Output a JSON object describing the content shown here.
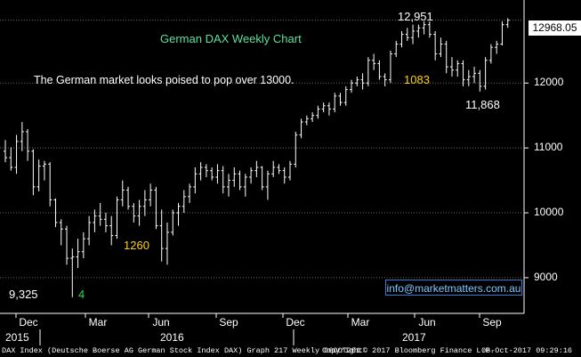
{
  "chart_data": {
    "type": "ohlc",
    "title": "German DAX Weekly Chart",
    "commentary": "The German market looks poised to pop over 13000.",
    "last_price": "12968.05",
    "ylim": [
      8450,
      13280
    ],
    "y_ticks": [
      {
        "value": 9000,
        "label": "9000"
      },
      {
        "value": 10000,
        "label": "10000"
      },
      {
        "value": 11000,
        "label": "11000"
      },
      {
        "value": 12000,
        "label": "12000"
      }
    ],
    "x_months": [
      "Dec",
      "Mar",
      "Jun",
      "Sep",
      "Dec",
      "Mar",
      "Jun",
      "Sep"
    ],
    "x_years": [
      "2015",
      "2016",
      "2017"
    ],
    "annotations": {
      "peak": "12,951",
      "trough": "11,868",
      "low": "9,325",
      "points_1083": "1083",
      "points_1260": "1260",
      "count": "4"
    },
    "contact": "info@marketmatters.com.au",
    "weekly_bars": [
      {
        "o": 10950,
        "h": 11120,
        "l": 10780,
        "c": 10850
      },
      {
        "o": 10850,
        "h": 11010,
        "l": 10650,
        "c": 10700
      },
      {
        "o": 10700,
        "h": 11200,
        "l": 10600,
        "c": 11100
      },
      {
        "o": 11100,
        "h": 11400,
        "l": 10950,
        "c": 11250
      },
      {
        "o": 11250,
        "h": 11290,
        "l": 10800,
        "c": 10950
      },
      {
        "o": 10950,
        "h": 10980,
        "l": 10270,
        "c": 10400
      },
      {
        "o": 10400,
        "h": 10820,
        "l": 10330,
        "c": 10720
      },
      {
        "o": 10720,
        "h": 10800,
        "l": 10500,
        "c": 10750
      },
      {
        "o": 10750,
        "h": 10780,
        "l": 10100,
        "c": 10200
      },
      {
        "o": 10200,
        "h": 10220,
        "l": 9780,
        "c": 9850
      },
      {
        "o": 9850,
        "h": 9900,
        "l": 9500,
        "c": 9750
      },
      {
        "o": 9750,
        "h": 9800,
        "l": 9200,
        "c": 9300
      },
      {
        "o": 9300,
        "h": 9450,
        "l": 8700,
        "c": 9320
      },
      {
        "o": 9320,
        "h": 9600,
        "l": 9150,
        "c": 9400
      },
      {
        "o": 9400,
        "h": 9700,
        "l": 9300,
        "c": 9600
      },
      {
        "o": 9600,
        "h": 9950,
        "l": 9500,
        "c": 9850
      },
      {
        "o": 9850,
        "h": 10050,
        "l": 9700,
        "c": 9950
      },
      {
        "o": 9950,
        "h": 10150,
        "l": 9800,
        "c": 9900
      },
      {
        "o": 9900,
        "h": 10000,
        "l": 9700,
        "c": 9800
      },
      {
        "o": 9800,
        "h": 9950,
        "l": 9500,
        "c": 9650
      },
      {
        "o": 9650,
        "h": 10250,
        "l": 9600,
        "c": 10200
      },
      {
        "o": 10200,
        "h": 10500,
        "l": 10100,
        "c": 10350
      },
      {
        "o": 10350,
        "h": 10400,
        "l": 10050,
        "c": 10100
      },
      {
        "o": 10100,
        "h": 10150,
        "l": 9850,
        "c": 9950
      },
      {
        "o": 9950,
        "h": 10200,
        "l": 9800,
        "c": 10100
      },
      {
        "o": 10100,
        "h": 10350,
        "l": 9950,
        "c": 10200
      },
      {
        "o": 10200,
        "h": 10450,
        "l": 10100,
        "c": 10350
      },
      {
        "o": 10350,
        "h": 10400,
        "l": 9750,
        "c": 9800
      },
      {
        "o": 9800,
        "h": 10050,
        "l": 9250,
        "c": 9450
      },
      {
        "o": 9450,
        "h": 9850,
        "l": 9200,
        "c": 9700
      },
      {
        "o": 9700,
        "h": 10050,
        "l": 9650,
        "c": 10000
      },
      {
        "o": 10000,
        "h": 10150,
        "l": 9800,
        "c": 10100
      },
      {
        "o": 10100,
        "h": 10350,
        "l": 10000,
        "c": 10250
      },
      {
        "o": 10250,
        "h": 10450,
        "l": 10150,
        "c": 10400
      },
      {
        "o": 10400,
        "h": 10700,
        "l": 10300,
        "c": 10600
      },
      {
        "o": 10600,
        "h": 10780,
        "l": 10500,
        "c": 10700
      },
      {
        "o": 10700,
        "h": 10750,
        "l": 10550,
        "c": 10650
      },
      {
        "o": 10650,
        "h": 10700,
        "l": 10500,
        "c": 10550
      },
      {
        "o": 10550,
        "h": 10750,
        "l": 10450,
        "c": 10650
      },
      {
        "o": 10650,
        "h": 10720,
        "l": 10300,
        "c": 10400
      },
      {
        "o": 10400,
        "h": 10600,
        "l": 10250,
        "c": 10500
      },
      {
        "o": 10500,
        "h": 10700,
        "l": 10400,
        "c": 10600
      },
      {
        "o": 10600,
        "h": 10650,
        "l": 10350,
        "c": 10400
      },
      {
        "o": 10400,
        "h": 10600,
        "l": 10250,
        "c": 10550
      },
      {
        "o": 10550,
        "h": 10700,
        "l": 10450,
        "c": 10650
      },
      {
        "o": 10650,
        "h": 10800,
        "l": 10550,
        "c": 10700
      },
      {
        "o": 10700,
        "h": 10720,
        "l": 10350,
        "c": 10400
      },
      {
        "o": 10400,
        "h": 10650,
        "l": 10200,
        "c": 10600
      },
      {
        "o": 10600,
        "h": 10800,
        "l": 10550,
        "c": 10700
      },
      {
        "o": 10700,
        "h": 10750,
        "l": 10600,
        "c": 10650
      },
      {
        "o": 10650,
        "h": 10700,
        "l": 10450,
        "c": 10550
      },
      {
        "o": 10550,
        "h": 10800,
        "l": 10500,
        "c": 10750
      },
      {
        "o": 10750,
        "h": 11250,
        "l": 10700,
        "c": 11200
      },
      {
        "o": 11200,
        "h": 11450,
        "l": 11150,
        "c": 11400
      },
      {
        "o": 11400,
        "h": 11500,
        "l": 11350,
        "c": 11450
      },
      {
        "o": 11450,
        "h": 11550,
        "l": 11400,
        "c": 11500
      },
      {
        "o": 11500,
        "h": 11650,
        "l": 11450,
        "c": 11600
      },
      {
        "o": 11600,
        "h": 11700,
        "l": 11550,
        "c": 11650
      },
      {
        "o": 11650,
        "h": 11700,
        "l": 11500,
        "c": 11600
      },
      {
        "o": 11600,
        "h": 11850,
        "l": 11550,
        "c": 11800
      },
      {
        "o": 11800,
        "h": 11850,
        "l": 11650,
        "c": 11700
      },
      {
        "o": 11700,
        "h": 11950,
        "l": 11650,
        "c": 11900
      },
      {
        "o": 11900,
        "h": 12050,
        "l": 11850,
        "c": 12000
      },
      {
        "o": 12000,
        "h": 12100,
        "l": 11950,
        "c": 12050
      },
      {
        "o": 12050,
        "h": 12150,
        "l": 11900,
        "c": 12000
      },
      {
        "o": 12000,
        "h": 12400,
        "l": 11950,
        "c": 12350
      },
      {
        "o": 12350,
        "h": 12450,
        "l": 12200,
        "c": 12300
      },
      {
        "o": 12300,
        "h": 12350,
        "l": 12050,
        "c": 12100
      },
      {
        "o": 12100,
        "h": 12150,
        "l": 11950,
        "c": 12050
      },
      {
        "o": 12050,
        "h": 12500,
        "l": 12000,
        "c": 12450
      },
      {
        "o": 12450,
        "h": 12650,
        "l": 12400,
        "c": 12600
      },
      {
        "o": 12600,
        "h": 12800,
        "l": 12550,
        "c": 12750
      },
      {
        "o": 12750,
        "h": 12850,
        "l": 12650,
        "c": 12700
      },
      {
        "o": 12700,
        "h": 12900,
        "l": 12600,
        "c": 12800
      },
      {
        "o": 12800,
        "h": 12900,
        "l": 12700,
        "c": 12850
      },
      {
        "o": 12850,
        "h": 12951,
        "l": 12750,
        "c": 12900
      },
      {
        "o": 12900,
        "h": 12950,
        "l": 12700,
        "c": 12750
      },
      {
        "o": 12750,
        "h": 12800,
        "l": 12350,
        "c": 12450
      },
      {
        "o": 12450,
        "h": 12700,
        "l": 12400,
        "c": 12600
      },
      {
        "o": 12600,
        "h": 12650,
        "l": 12150,
        "c": 12250
      },
      {
        "o": 12250,
        "h": 12400,
        "l": 12100,
        "c": 12200
      },
      {
        "o": 12200,
        "h": 12350,
        "l": 12100,
        "c": 12300
      },
      {
        "o": 12300,
        "h": 12350,
        "l": 11950,
        "c": 12050
      },
      {
        "o": 12050,
        "h": 12200,
        "l": 11950,
        "c": 12100
      },
      {
        "o": 12100,
        "h": 12250,
        "l": 12000,
        "c": 12150
      },
      {
        "o": 12150,
        "h": 12200,
        "l": 11868,
        "c": 11950
      },
      {
        "o": 11950,
        "h": 12400,
        "l": 11900,
        "c": 12350
      },
      {
        "o": 12350,
        "h": 12600,
        "l": 12300,
        "c": 12550
      },
      {
        "o": 12550,
        "h": 12650,
        "l": 12450,
        "c": 12600
      },
      {
        "o": 12600,
        "h": 12950,
        "l": 12580,
        "c": 12900
      },
      {
        "o": 12900,
        "h": 13000,
        "l": 12850,
        "c": 12968
      }
    ]
  },
  "footer": {
    "left": "DAX Index (Deutsche Boerse AG German Stock Index DAX) Graph 217  Weekly 06OCT201",
    "middle": "Copyright© 2017 Bloomberg Finance L.P.",
    "right": "06-Oct-2017 09:29:16"
  }
}
